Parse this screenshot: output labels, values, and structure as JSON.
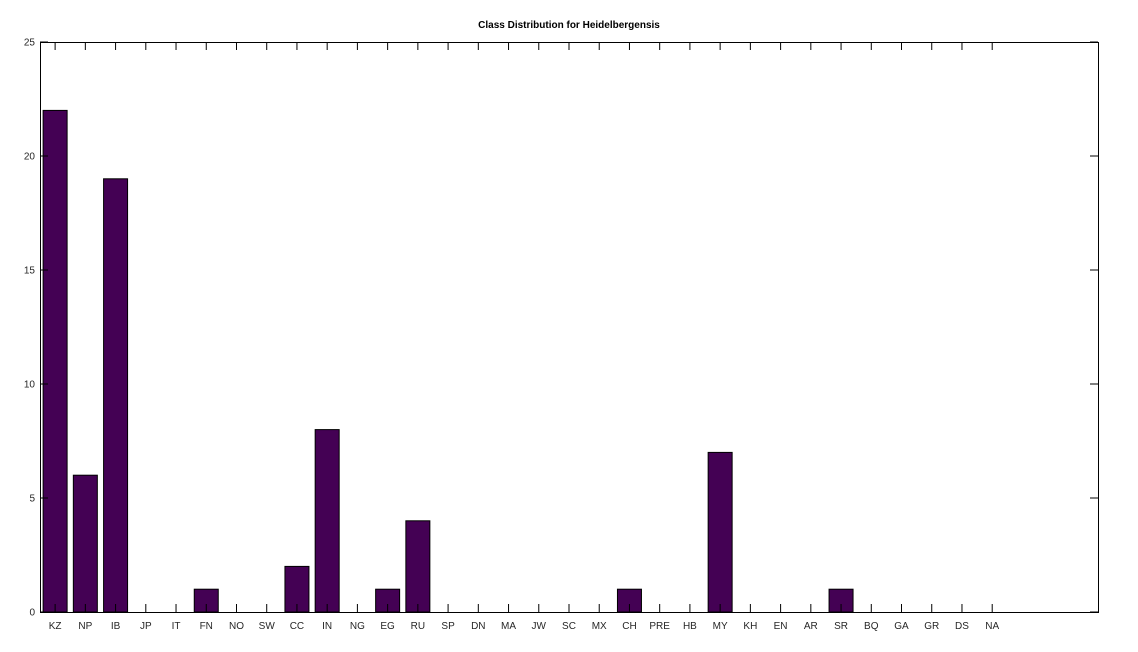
{
  "chart_data": {
    "type": "bar",
    "title": "Class Distribution for Heidelbergensis",
    "xlabel": "",
    "ylabel": "",
    "categories": [
      "KZ",
      "NP",
      "IB",
      "JP",
      "IT",
      "FN",
      "NO",
      "SW",
      "CC",
      "IN",
      "NG",
      "EG",
      "RU",
      "SP",
      "DN",
      "MA",
      "JW",
      "SC",
      "MX",
      "CH",
      "PRE",
      "HB",
      "MY",
      "KH",
      "EN",
      "AR",
      "SR",
      "BQ",
      "GA",
      "GR",
      "DS",
      "NA"
    ],
    "values": [
      22,
      6,
      19,
      0,
      0,
      1,
      0,
      0,
      2,
      8,
      0,
      1,
      4,
      0,
      0,
      0,
      0,
      0,
      0,
      1,
      0,
      0,
      7,
      0,
      0,
      0,
      1,
      0,
      0,
      0,
      0,
      0
    ],
    "ylim": [
      0,
      25
    ],
    "yticks": [
      0,
      5,
      10,
      15,
      20,
      25
    ],
    "x_range": [
      0.5,
      35.5
    ],
    "bar_color": "#440154",
    "grid": false,
    "legend": "none"
  }
}
